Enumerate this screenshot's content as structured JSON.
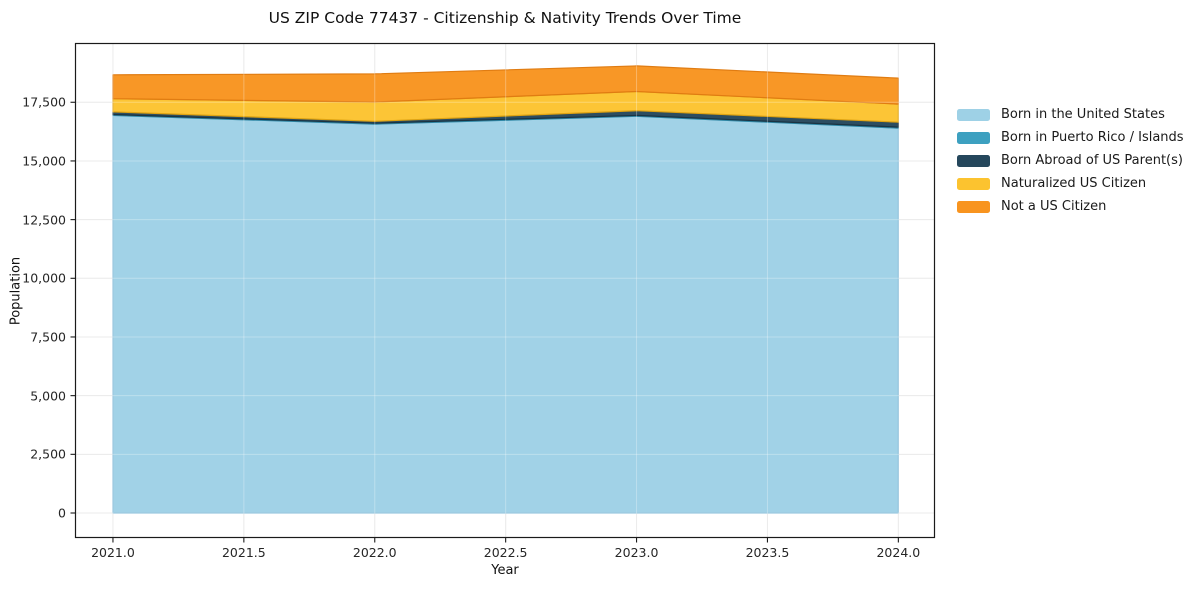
{
  "chart_data": {
    "type": "area",
    "stacked": true,
    "title": "US ZIP Code 77437 - Citizenship & Nativity Trends Over Time",
    "xlabel": "Year",
    "ylabel": "Population",
    "x": [
      2021,
      2022,
      2023,
      2024
    ],
    "series": [
      {
        "name": "Born in the United States",
        "color": "#9ed1e6",
        "edge": "#7fb9d6",
        "values": [
          16940,
          16570,
          16900,
          16400
        ]
      },
      {
        "name": "Born in Puerto Rico / Islands",
        "color": "#3da0c0",
        "edge": "#2e87a5",
        "values": [
          40,
          40,
          40,
          40
        ]
      },
      {
        "name": "Born Abroad of US Parent(s)",
        "color": "#25475c",
        "edge": "#1a3342",
        "values": [
          110,
          80,
          200,
          210
        ]
      },
      {
        "name": "Naturalized US Citizen",
        "color": "#fcc32f",
        "edge": "#dfa312",
        "values": [
          560,
          820,
          820,
          770
        ]
      },
      {
        "name": "Not a US Citizen",
        "color": "#f8941f",
        "edge": "#e07c12",
        "values": [
          1020,
          1200,
          1090,
          1110
        ]
      }
    ],
    "totals": [
      18670,
      18710,
      19050,
      18530
    ],
    "xlim": [
      2020.855,
      2024.14
    ],
    "ylim": [
      -1065,
      20025
    ],
    "x_ticks": [
      "2021.0",
      "2021.5",
      "2022.0",
      "2022.5",
      "2023.0",
      "2023.5",
      "2024.0"
    ],
    "x_tick_values": [
      2021,
      2021.5,
      2022,
      2022.5,
      2023,
      2023.5,
      2024
    ],
    "y_ticks": [
      "0",
      "2,500",
      "5,000",
      "7,500",
      "10,000",
      "12,500",
      "15,000",
      "17,500"
    ],
    "y_tick_values": [
      0,
      2500,
      5000,
      7500,
      10000,
      12500,
      15000,
      17500
    ],
    "grid": true,
    "grid_color": "#e3e3e3",
    "frame_color": "#1a1a1a",
    "legend_position": "right"
  }
}
